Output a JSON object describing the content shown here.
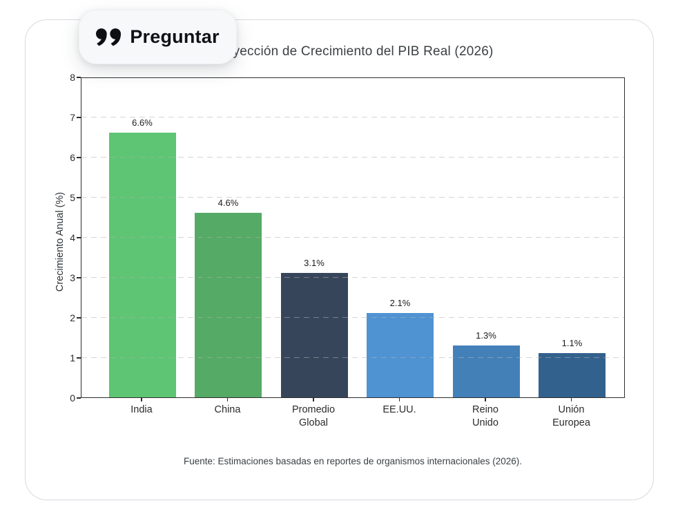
{
  "overlay": {
    "ask_button": {
      "label": "Preguntar",
      "icon": "quote-icon"
    }
  },
  "chart_data": {
    "type": "bar",
    "title": "Proyección de Crecimiento del PIB Real (2026)",
    "categories": [
      "India",
      "China",
      "Promedio\nGlobal",
      "EE.UU.",
      "Reino\nUnido",
      "Unión\nEuropea"
    ],
    "values": [
      6.6,
      4.6,
      3.1,
      2.1,
      1.3,
      1.1
    ],
    "bar_labels": [
      "6.6%",
      "4.6%",
      "3.1%",
      "2.1%",
      "1.3%",
      "1.1%"
    ],
    "bar_colors": [
      "#5dc573",
      "#55aa66",
      "#36455a",
      "#4f93d3",
      "#4480b8",
      "#32618d"
    ],
    "xlabel": "",
    "ylabel": "Crecimiento Anual (%)",
    "ylim": [
      0,
      8
    ],
    "yticks": [
      0,
      1,
      2,
      3,
      4,
      5,
      6,
      7,
      8
    ],
    "grid": true,
    "gridline_values": [
      1,
      2,
      3,
      4,
      5,
      6,
      7
    ],
    "legend": null,
    "source_note": "Fuente: Estimaciones basadas en reportes de organismos internacionales (2026)."
  }
}
